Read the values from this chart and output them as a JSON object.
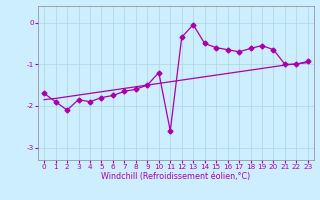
{
  "xlabel": "Windchill (Refroidissement éolien,°C)",
  "bg_color": "#cceeff",
  "line_color": "#aa00aa",
  "marker": "D",
  "markersize": 2.5,
  "linewidth": 0.9,
  "x_hours": [
    0,
    1,
    2,
    3,
    4,
    5,
    6,
    7,
    8,
    9,
    10,
    11,
    12,
    13,
    14,
    15,
    16,
    17,
    18,
    19,
    20,
    21,
    22,
    23
  ],
  "y_windchill": [
    -1.7,
    -1.9,
    -2.1,
    -1.85,
    -1.9,
    -1.8,
    -1.75,
    -1.65,
    -1.6,
    -1.5,
    -1.2,
    -2.6,
    -0.35,
    -0.05,
    -0.5,
    -0.6,
    -0.65,
    -0.7,
    -0.62,
    -0.55,
    -0.65,
    -1.0,
    -1.0,
    -0.93
  ],
  "y_line2": [
    -1.85,
    -1.82,
    -1.78,
    -1.74,
    -1.7,
    -1.66,
    -1.62,
    -1.58,
    -1.54,
    -1.5,
    -1.46,
    -1.42,
    -1.38,
    -1.34,
    -1.3,
    -1.26,
    -1.22,
    -1.18,
    -1.14,
    -1.1,
    -1.06,
    -1.02,
    -0.99,
    -0.96
  ],
  "xlim": [
    -0.5,
    23.5
  ],
  "ylim": [
    -3.3,
    0.4
  ],
  "yticks": [
    0,
    -1,
    -2,
    -3
  ],
  "xticks": [
    0,
    1,
    2,
    3,
    4,
    5,
    6,
    7,
    8,
    9,
    10,
    11,
    12,
    13,
    14,
    15,
    16,
    17,
    18,
    19,
    20,
    21,
    22,
    23
  ],
  "grid_color": "#aad8d8",
  "xlabel_fontsize": 5.8,
  "tick_fontsize": 5.2
}
